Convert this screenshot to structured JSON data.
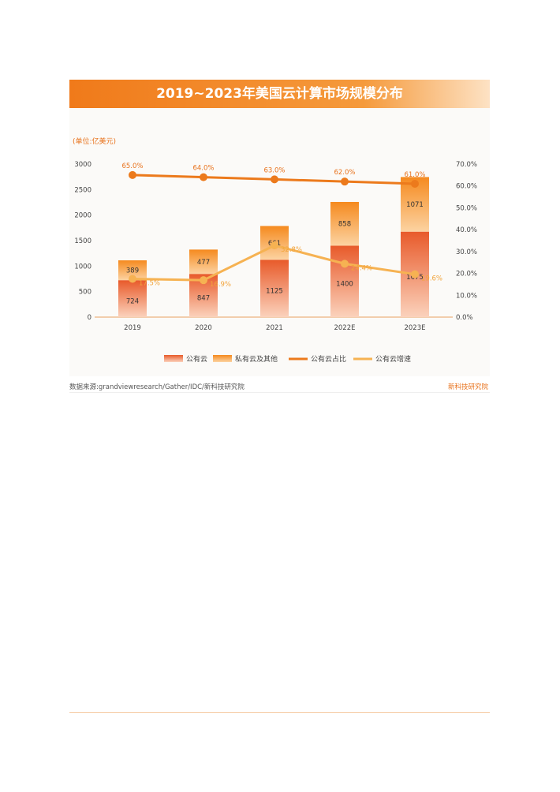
{
  "banner": {
    "title": "2019~2023年美国云计算市场规模分布"
  },
  "footer": {
    "source": "数据来源:grandviewresearch/Gather/IDC/新科技研究院",
    "brand": "新科技研究院"
  },
  "colors": {
    "banner": "#f07a1a",
    "public_cloud": "#e8582a",
    "private_cloud": "#f9a23c",
    "share_line": "#ec7a1c",
    "growth_line": "#f6b252"
  },
  "chart_data": {
    "type": "bar",
    "unit_label": "(单位:亿美元)",
    "categories": [
      "2019",
      "2020",
      "2021",
      "2022E",
      "2023E"
    ],
    "series": [
      {
        "name": "公有云",
        "kind": "bar",
        "values": [
          724,
          847,
          1125,
          1400,
          1675
        ]
      },
      {
        "name": "私有云及其他",
        "kind": "bar",
        "values": [
          389,
          477,
          661,
          858,
          1071
        ]
      },
      {
        "name": "公有云占比",
        "kind": "line",
        "axis": "right",
        "values": [
          65.0,
          64.0,
          63.0,
          62.0,
          61.0
        ]
      },
      {
        "name": "公有云增速",
        "kind": "line",
        "axis": "right",
        "values": [
          17.5,
          16.9,
          32.8,
          24.4,
          19.6
        ]
      }
    ],
    "public_labels": [
      "724",
      "847",
      "1125",
      "1400",
      "1675"
    ],
    "private_labels": [
      "389",
      "477",
      "661",
      "858",
      "1071"
    ],
    "share_labels": [
      "65.0%",
      "64.0%",
      "63.0%",
      "62.0%",
      "61.0%"
    ],
    "growth_labels": [
      "17.5%",
      "16.9%",
      "32.8%",
      "24.4%",
      "19.6%"
    ],
    "left_ticks": [
      "0",
      "500",
      "1000",
      "1500",
      "2000",
      "2500",
      "3000"
    ],
    "right_ticks": [
      "0.0%",
      "10.0%",
      "20.0%",
      "30.0%",
      "40.0%",
      "50.0%",
      "60.0%",
      "70.0%"
    ],
    "ylim_left": [
      0,
      3000
    ],
    "ylim_right": [
      0,
      70
    ],
    "legend_position": "bottom",
    "grid": false
  }
}
